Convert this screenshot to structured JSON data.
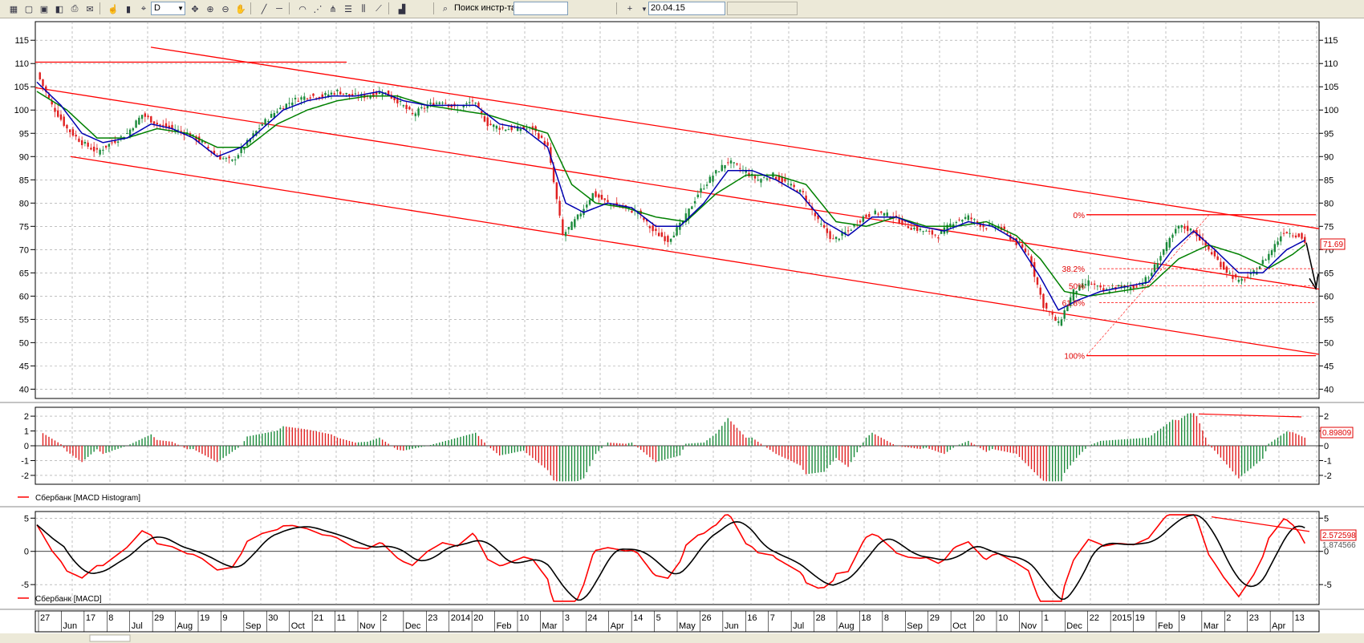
{
  "toolbar": {
    "timeframe": "D",
    "search_label": "Поиск инстр-та",
    "search_value": "",
    "date_value": "20.04.15",
    "extra_value": "",
    "icons": [
      "chart-icon",
      "open-icon",
      "save-icon",
      "template-icon",
      "print-icon",
      "export-icon",
      "hand-icon",
      "bar-chart-icon",
      "crosshair-icon",
      "zoom-in-icon",
      "zoom-out-icon",
      "pan-icon",
      "line-icon",
      "hline-icon",
      "arc-icon",
      "fan-icon",
      "pitchfork-icon",
      "fib-icon",
      "channel-icon",
      "trendline-icon",
      "indicators-icon",
      "search-icon",
      "cursor-plus-icon",
      "dropdown-icon"
    ]
  },
  "colors": {
    "up": "#1a8a3a",
    "down": "#e02020",
    "ma_fast": "#0000b0",
    "ma_slow": "#008000",
    "drawing": "#ff0000",
    "macd": "#000000",
    "signal": "#ff0000",
    "grid": "#888888"
  },
  "chart_data": [
    {
      "type": "candlestick",
      "instrument": "",
      "y_ticks": [
        40,
        45,
        50,
        55,
        60,
        65,
        70,
        75,
        80,
        85,
        90,
        95,
        100,
        105,
        110,
        115
      ],
      "ylim": [
        38,
        119
      ],
      "last_value_label": "71.69",
      "grid": true,
      "x_date_labels": [
        "27",
        "Jun",
        "17",
        "8",
        "Jul",
        "29",
        "Aug",
        "19",
        "9",
        "Sep",
        "30",
        "Oct",
        "21",
        "11",
        "Nov",
        "2",
        "Dec",
        "23",
        "2014",
        "20",
        "Feb",
        "10",
        "Mar",
        "3",
        "24",
        "Apr",
        "14",
        "5",
        "May",
        "26",
        "Jun",
        "16",
        "7",
        "Jul",
        "28",
        "Aug",
        "18",
        "8",
        "Sep",
        "29",
        "Oct",
        "20",
        "10",
        "Nov",
        "1",
        "Dec",
        "22",
        "2015",
        "19",
        "Feb",
        "9",
        "Mar",
        "2",
        "23",
        "Apr",
        "13"
      ],
      "close_path": [
        [
          0,
          108
        ],
        [
          5,
          101
        ],
        [
          10,
          96
        ],
        [
          15,
          93
        ],
        [
          20,
          91
        ],
        [
          25,
          93
        ],
        [
          30,
          95
        ],
        [
          35,
          99
        ],
        [
          40,
          97
        ],
        [
          45,
          96
        ],
        [
          50,
          95
        ],
        [
          55,
          93
        ],
        [
          60,
          90
        ],
        [
          65,
          89
        ],
        [
          70,
          93
        ],
        [
          75,
          97
        ],
        [
          80,
          100
        ],
        [
          85,
          102
        ],
        [
          90,
          103
        ],
        [
          95,
          103
        ],
        [
          100,
          104
        ],
        [
          105,
          103
        ],
        [
          110,
          103
        ],
        [
          115,
          104
        ],
        [
          120,
          102
        ],
        [
          125,
          99
        ],
        [
          130,
          101
        ],
        [
          135,
          102
        ],
        [
          140,
          100
        ],
        [
          145,
          102
        ],
        [
          150,
          97
        ],
        [
          155,
          96
        ],
        [
          160,
          96
        ],
        [
          165,
          96
        ],
        [
          170,
          92
        ],
        [
          175,
          73
        ],
        [
          180,
          77
        ],
        [
          185,
          82
        ],
        [
          190,
          80
        ],
        [
          195,
          79
        ],
        [
          200,
          78
        ],
        [
          205,
          74
        ],
        [
          210,
          72
        ],
        [
          215,
          76
        ],
        [
          220,
          82
        ],
        [
          225,
          86
        ],
        [
          230,
          89
        ],
        [
          235,
          87
        ],
        [
          240,
          85
        ],
        [
          245,
          86
        ],
        [
          250,
          84
        ],
        [
          255,
          82
        ],
        [
          260,
          76
        ],
        [
          265,
          72
        ],
        [
          270,
          74
        ],
        [
          275,
          77
        ],
        [
          280,
          78
        ],
        [
          285,
          77
        ],
        [
          290,
          75
        ],
        [
          295,
          74
        ],
        [
          300,
          73
        ],
        [
          305,
          76
        ],
        [
          310,
          77
        ],
        [
          315,
          75
        ],
        [
          320,
          75
        ],
        [
          325,
          72
        ],
        [
          330,
          69
        ],
        [
          335,
          58
        ],
        [
          340,
          54
        ],
        [
          345,
          61
        ],
        [
          350,
          63
        ],
        [
          355,
          61
        ],
        [
          360,
          62
        ],
        [
          365,
          62
        ],
        [
          370,
          64
        ],
        [
          375,
          70
        ],
        [
          380,
          75
        ],
        [
          385,
          74
        ],
        [
          390,
          70
        ],
        [
          395,
          66
        ],
        [
          400,
          63
        ],
        [
          405,
          65
        ],
        [
          410,
          69
        ],
        [
          415,
          74
        ],
        [
          420,
          73
        ],
        [
          422,
          71.69
        ]
      ],
      "ma_fast_path": [
        [
          0,
          106
        ],
        [
          8,
          101
        ],
        [
          15,
          95
        ],
        [
          22,
          93
        ],
        [
          30,
          94
        ],
        [
          38,
          97
        ],
        [
          45,
          96
        ],
        [
          52,
          94
        ],
        [
          60,
          90
        ],
        [
          68,
          92
        ],
        [
          75,
          96
        ],
        [
          82,
          100
        ],
        [
          90,
          102
        ],
        [
          98,
          103
        ],
        [
          106,
          103
        ],
        [
          114,
          104
        ],
        [
          122,
          102
        ],
        [
          130,
          101
        ],
        [
          138,
          101
        ],
        [
          146,
          101
        ],
        [
          154,
          97
        ],
        [
          162,
          96
        ],
        [
          170,
          92
        ],
        [
          176,
          80
        ],
        [
          182,
          78
        ],
        [
          190,
          80
        ],
        [
          198,
          79
        ],
        [
          206,
          75
        ],
        [
          214,
          75
        ],
        [
          222,
          80
        ],
        [
          230,
          87
        ],
        [
          238,
          87
        ],
        [
          246,
          85
        ],
        [
          254,
          82
        ],
        [
          262,
          76
        ],
        [
          270,
          73
        ],
        [
          278,
          77
        ],
        [
          286,
          77
        ],
        [
          294,
          75
        ],
        [
          302,
          74
        ],
        [
          310,
          76
        ],
        [
          318,
          75
        ],
        [
          326,
          72
        ],
        [
          334,
          64
        ],
        [
          340,
          57
        ],
        [
          346,
          59
        ],
        [
          354,
          61
        ],
        [
          362,
          62
        ],
        [
          370,
          63
        ],
        [
          378,
          70
        ],
        [
          385,
          74
        ],
        [
          392,
          70
        ],
        [
          400,
          65
        ],
        [
          408,
          65
        ],
        [
          416,
          70
        ],
        [
          422,
          72
        ]
      ],
      "ma_slow_path": [
        [
          0,
          104
        ],
        [
          10,
          100
        ],
        [
          20,
          94
        ],
        [
          30,
          94
        ],
        [
          40,
          96
        ],
        [
          50,
          95
        ],
        [
          60,
          92
        ],
        [
          70,
          92
        ],
        [
          80,
          97
        ],
        [
          90,
          100
        ],
        [
          100,
          102
        ],
        [
          110,
          103
        ],
        [
          120,
          103
        ],
        [
          130,
          101
        ],
        [
          140,
          100
        ],
        [
          150,
          99
        ],
        [
          160,
          97
        ],
        [
          170,
          95
        ],
        [
          178,
          84
        ],
        [
          186,
          80
        ],
        [
          196,
          79
        ],
        [
          206,
          77
        ],
        [
          216,
          76
        ],
        [
          226,
          82
        ],
        [
          236,
          86
        ],
        [
          246,
          86
        ],
        [
          256,
          84
        ],
        [
          266,
          76
        ],
        [
          276,
          75
        ],
        [
          286,
          77
        ],
        [
          296,
          75
        ],
        [
          306,
          75
        ],
        [
          316,
          76
        ],
        [
          326,
          73
        ],
        [
          334,
          68
        ],
        [
          342,
          61
        ],
        [
          350,
          60
        ],
        [
          360,
          61
        ],
        [
          370,
          62
        ],
        [
          380,
          68
        ],
        [
          390,
          71
        ],
        [
          400,
          69
        ],
        [
          410,
          66
        ],
        [
          418,
          69
        ],
        [
          422,
          71
        ]
      ],
      "annotations": {
        "fib_levels": [
          {
            "label": "0%",
            "price": 77.5
          },
          {
            "label": "38.2%",
            "price": 65.9
          },
          {
            "label": "50%",
            "price": 62.2
          },
          {
            "label": "61.8%",
            "price": 58.6
          },
          {
            "label": "100%",
            "price": 47.2
          }
        ]
      }
    },
    {
      "type": "bar",
      "instrument": "Сбербанк [MACD Histogram]",
      "y_ticks": [
        -2,
        -1,
        0,
        1,
        2
      ],
      "ylim": [
        -2.6,
        2.6
      ],
      "last_value_label": "0.89809",
      "grid": true
    },
    {
      "type": "line",
      "instrument": "Сбербанк [MACD]",
      "y_ticks": [
        -5,
        0,
        5
      ],
      "ylim": [
        -8,
        6
      ],
      "last_value_label": "2.572598",
      "second_value_label": "1.874566",
      "grid": true
    }
  ]
}
